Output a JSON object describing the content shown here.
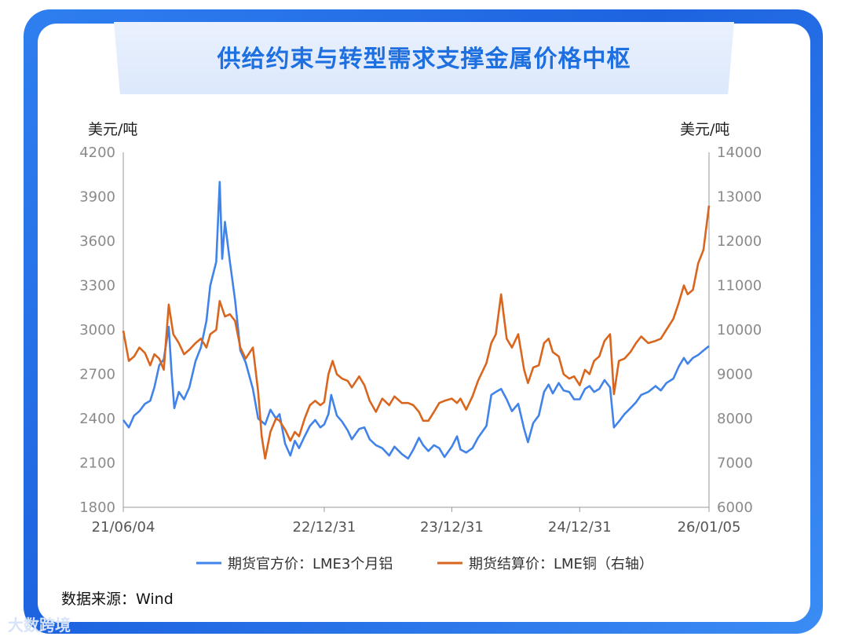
{
  "header": {
    "title": "供给约束与转型需求支撑金属价格中枢"
  },
  "units": {
    "left": "美元/吨",
    "right": "美元/吨"
  },
  "source": "数据来源：Wind",
  "watermark": "大数跨境",
  "colors": {
    "aluminum": "#4183e8",
    "copper": "#d9661e",
    "frame": "#2f7ff0",
    "title": "#1e6fe0"
  },
  "chart_data": {
    "type": "line",
    "title": "供给约束与转型需求支撑金属价格中枢",
    "x_range": [
      "2021-06-04",
      "2026-01-05"
    ],
    "x_ticks": [
      {
        "label": "21/06/04",
        "date": "2021-06-04"
      },
      {
        "label": "22/12/31",
        "date": "2022-12-31"
      },
      {
        "label": "23/12/31",
        "date": "2023-12-31"
      },
      {
        "label": "24/12/31",
        "date": "2024-12-31"
      },
      {
        "label": "26/01/05",
        "date": "2026-01-05"
      }
    ],
    "y_left": {
      "label": "美元/吨",
      "range": [
        1800,
        4200
      ],
      "ticks": [
        1800,
        2100,
        2400,
        2700,
        3000,
        3300,
        3600,
        3900,
        4200
      ]
    },
    "y_right": {
      "label": "美元/吨",
      "range": [
        6000,
        14000
      ],
      "ticks": [
        6000,
        7000,
        8000,
        9000,
        10000,
        11000,
        12000,
        13000,
        14000
      ]
    },
    "legend_position": "bottom",
    "series": [
      {
        "name": "期货官方价：LME3个月铝",
        "axis": "left",
        "points": [
          [
            "2021-06-04",
            2390
          ],
          [
            "2021-06-20",
            2340
          ],
          [
            "2021-07-05",
            2420
          ],
          [
            "2021-07-20",
            2450
          ],
          [
            "2021-08-05",
            2500
          ],
          [
            "2021-08-20",
            2520
          ],
          [
            "2021-09-01",
            2610
          ],
          [
            "2021-09-15",
            2760
          ],
          [
            "2021-09-28",
            2800
          ],
          [
            "2021-10-12",
            3020
          ],
          [
            "2021-10-20",
            2720
          ],
          [
            "2021-10-28",
            2470
          ],
          [
            "2021-11-10",
            2580
          ],
          [
            "2021-11-25",
            2530
          ],
          [
            "2021-12-10",
            2610
          ],
          [
            "2021-12-28",
            2790
          ],
          [
            "2022-01-12",
            2880
          ],
          [
            "2022-01-28",
            3060
          ],
          [
            "2022-02-08",
            3300
          ],
          [
            "2022-02-25",
            3460
          ],
          [
            "2022-03-07",
            4000
          ],
          [
            "2022-03-14",
            3480
          ],
          [
            "2022-03-22",
            3730
          ],
          [
            "2022-04-05",
            3460
          ],
          [
            "2022-04-20",
            3200
          ],
          [
            "2022-05-05",
            2860
          ],
          [
            "2022-05-20",
            2780
          ],
          [
            "2022-06-10",
            2600
          ],
          [
            "2022-06-25",
            2400
          ],
          [
            "2022-07-15",
            2360
          ],
          [
            "2022-07-30",
            2460
          ],
          [
            "2022-08-15",
            2400
          ],
          [
            "2022-08-25",
            2430
          ],
          [
            "2022-09-10",
            2230
          ],
          [
            "2022-09-25",
            2150
          ],
          [
            "2022-10-08",
            2250
          ],
          [
            "2022-10-20",
            2200
          ],
          [
            "2022-11-05",
            2280
          ],
          [
            "2022-11-20",
            2350
          ],
          [
            "2022-12-05",
            2390
          ],
          [
            "2022-12-20",
            2340
          ],
          [
            "2022-12-31",
            2360
          ],
          [
            "2023-01-12",
            2430
          ],
          [
            "2023-01-20",
            2560
          ],
          [
            "2023-02-05",
            2420
          ],
          [
            "2023-02-20",
            2380
          ],
          [
            "2023-03-08",
            2320
          ],
          [
            "2023-03-20",
            2260
          ],
          [
            "2023-04-10",
            2330
          ],
          [
            "2023-04-25",
            2340
          ],
          [
            "2023-05-10",
            2260
          ],
          [
            "2023-05-28",
            2220
          ],
          [
            "2023-06-15",
            2200
          ],
          [
            "2023-07-05",
            2150
          ],
          [
            "2023-07-20",
            2210
          ],
          [
            "2023-08-10",
            2160
          ],
          [
            "2023-08-28",
            2130
          ],
          [
            "2023-09-12",
            2190
          ],
          [
            "2023-09-28",
            2270
          ],
          [
            "2023-10-10",
            2220
          ],
          [
            "2023-10-25",
            2180
          ],
          [
            "2023-11-10",
            2220
          ],
          [
            "2023-11-25",
            2200
          ],
          [
            "2023-12-10",
            2140
          ],
          [
            "2023-12-31",
            2210
          ],
          [
            "2024-01-15",
            2280
          ],
          [
            "2024-01-25",
            2190
          ],
          [
            "2024-02-10",
            2170
          ],
          [
            "2024-02-28",
            2200
          ],
          [
            "2024-03-15",
            2270
          ],
          [
            "2024-04-08",
            2350
          ],
          [
            "2024-04-22",
            2560
          ],
          [
            "2024-05-05",
            2580
          ],
          [
            "2024-05-20",
            2600
          ],
          [
            "2024-06-05",
            2530
          ],
          [
            "2024-06-20",
            2450
          ],
          [
            "2024-07-08",
            2500
          ],
          [
            "2024-07-25",
            2330
          ],
          [
            "2024-08-05",
            2240
          ],
          [
            "2024-08-20",
            2370
          ],
          [
            "2024-09-05",
            2420
          ],
          [
            "2024-09-20",
            2580
          ],
          [
            "2024-10-03",
            2630
          ],
          [
            "2024-10-15",
            2570
          ],
          [
            "2024-11-01",
            2640
          ],
          [
            "2024-11-15",
            2590
          ],
          [
            "2024-12-01",
            2580
          ],
          [
            "2024-12-15",
            2530
          ],
          [
            "2024-12-31",
            2530
          ],
          [
            "2025-01-15",
            2600
          ],
          [
            "2025-01-28",
            2620
          ],
          [
            "2025-02-10",
            2580
          ],
          [
            "2025-02-25",
            2600
          ],
          [
            "2025-03-12",
            2660
          ],
          [
            "2025-03-28",
            2610
          ],
          [
            "2025-04-08",
            2340
          ],
          [
            "2025-04-22",
            2380
          ],
          [
            "2025-05-08",
            2430
          ],
          [
            "2025-05-25",
            2470
          ],
          [
            "2025-06-10",
            2510
          ],
          [
            "2025-06-25",
            2560
          ],
          [
            "2025-07-15",
            2580
          ],
          [
            "2025-08-05",
            2620
          ],
          [
            "2025-08-20",
            2590
          ],
          [
            "2025-09-05",
            2640
          ],
          [
            "2025-09-25",
            2670
          ],
          [
            "2025-10-10",
            2750
          ],
          [
            "2025-10-25",
            2810
          ],
          [
            "2025-11-05",
            2770
          ],
          [
            "2025-11-20",
            2810
          ],
          [
            "2025-12-05",
            2830
          ],
          [
            "2025-12-20",
            2860
          ],
          [
            "2026-01-05",
            2890
          ]
        ]
      },
      {
        "name": "期货结算价：LME铜（右轴）",
        "axis": "right",
        "points": [
          [
            "2021-06-04",
            9980
          ],
          [
            "2021-06-20",
            9300
          ],
          [
            "2021-07-05",
            9400
          ],
          [
            "2021-07-20",
            9600
          ],
          [
            "2021-08-05",
            9480
          ],
          [
            "2021-08-20",
            9200
          ],
          [
            "2021-09-01",
            9450
          ],
          [
            "2021-09-15",
            9350
          ],
          [
            "2021-09-28",
            9100
          ],
          [
            "2021-10-12",
            10570
          ],
          [
            "2021-10-25",
            9900
          ],
          [
            "2021-11-10",
            9700
          ],
          [
            "2021-11-25",
            9450
          ],
          [
            "2021-12-10",
            9550
          ],
          [
            "2021-12-28",
            9700
          ],
          [
            "2022-01-12",
            9800
          ],
          [
            "2022-01-28",
            9600
          ],
          [
            "2022-02-08",
            9900
          ],
          [
            "2022-02-25",
            10000
          ],
          [
            "2022-03-07",
            10650
          ],
          [
            "2022-03-22",
            10300
          ],
          [
            "2022-04-05",
            10350
          ],
          [
            "2022-04-20",
            10200
          ],
          [
            "2022-05-05",
            9600
          ],
          [
            "2022-05-20",
            9350
          ],
          [
            "2022-06-10",
            9600
          ],
          [
            "2022-06-25",
            8600
          ],
          [
            "2022-07-05",
            7600
          ],
          [
            "2022-07-15",
            7100
          ],
          [
            "2022-07-30",
            7700
          ],
          [
            "2022-08-15",
            8000
          ],
          [
            "2022-08-25",
            7950
          ],
          [
            "2022-09-10",
            7750
          ],
          [
            "2022-09-25",
            7500
          ],
          [
            "2022-10-08",
            7700
          ],
          [
            "2022-10-20",
            7600
          ],
          [
            "2022-11-05",
            8000
          ],
          [
            "2022-11-20",
            8300
          ],
          [
            "2022-12-05",
            8400
          ],
          [
            "2022-12-20",
            8300
          ],
          [
            "2022-12-31",
            8370
          ],
          [
            "2023-01-12",
            9000
          ],
          [
            "2023-01-24",
            9300
          ],
          [
            "2023-02-05",
            9000
          ],
          [
            "2023-02-20",
            8900
          ],
          [
            "2023-03-08",
            8850
          ],
          [
            "2023-03-20",
            8700
          ],
          [
            "2023-04-10",
            8950
          ],
          [
            "2023-04-25",
            8750
          ],
          [
            "2023-05-10",
            8400
          ],
          [
            "2023-05-28",
            8150
          ],
          [
            "2023-06-15",
            8450
          ],
          [
            "2023-07-05",
            8300
          ],
          [
            "2023-07-20",
            8500
          ],
          [
            "2023-08-10",
            8350
          ],
          [
            "2023-08-28",
            8350
          ],
          [
            "2023-09-12",
            8300
          ],
          [
            "2023-09-28",
            8150
          ],
          [
            "2023-10-10",
            7950
          ],
          [
            "2023-10-25",
            7950
          ],
          [
            "2023-11-10",
            8150
          ],
          [
            "2023-11-25",
            8350
          ],
          [
            "2023-12-10",
            8400
          ],
          [
            "2023-12-31",
            8450
          ],
          [
            "2024-01-15",
            8350
          ],
          [
            "2024-01-25",
            8450
          ],
          [
            "2024-02-10",
            8200
          ],
          [
            "2024-02-28",
            8500
          ],
          [
            "2024-03-15",
            8850
          ],
          [
            "2024-04-08",
            9250
          ],
          [
            "2024-04-22",
            9700
          ],
          [
            "2024-05-05",
            9900
          ],
          [
            "2024-05-20",
            10800
          ],
          [
            "2024-06-05",
            9800
          ],
          [
            "2024-06-20",
            9600
          ],
          [
            "2024-07-08",
            9900
          ],
          [
            "2024-07-25",
            9100
          ],
          [
            "2024-08-05",
            8800
          ],
          [
            "2024-08-20",
            9150
          ],
          [
            "2024-09-05",
            9200
          ],
          [
            "2024-09-20",
            9700
          ],
          [
            "2024-10-03",
            9800
          ],
          [
            "2024-10-15",
            9500
          ],
          [
            "2024-11-01",
            9400
          ],
          [
            "2024-11-15",
            9000
          ],
          [
            "2024-12-01",
            8900
          ],
          [
            "2024-12-15",
            8950
          ],
          [
            "2024-12-31",
            8750
          ],
          [
            "2025-01-15",
            9100
          ],
          [
            "2025-01-28",
            9000
          ],
          [
            "2025-02-10",
            9300
          ],
          [
            "2025-02-25",
            9400
          ],
          [
            "2025-03-12",
            9750
          ],
          [
            "2025-03-28",
            9900
          ],
          [
            "2025-04-08",
            8550
          ],
          [
            "2025-04-22",
            9300
          ],
          [
            "2025-05-08",
            9350
          ],
          [
            "2025-05-25",
            9500
          ],
          [
            "2025-06-10",
            9700
          ],
          [
            "2025-06-25",
            9850
          ],
          [
            "2025-07-15",
            9700
          ],
          [
            "2025-08-05",
            9750
          ],
          [
            "2025-08-20",
            9800
          ],
          [
            "2025-09-05",
            10000
          ],
          [
            "2025-09-25",
            10250
          ],
          [
            "2025-10-10",
            10600
          ],
          [
            "2025-10-25",
            11000
          ],
          [
            "2025-11-05",
            10800
          ],
          [
            "2025-11-20",
            10900
          ],
          [
            "2025-12-05",
            11500
          ],
          [
            "2025-12-20",
            11800
          ],
          [
            "2026-01-05",
            12800
          ]
        ]
      }
    ]
  }
}
